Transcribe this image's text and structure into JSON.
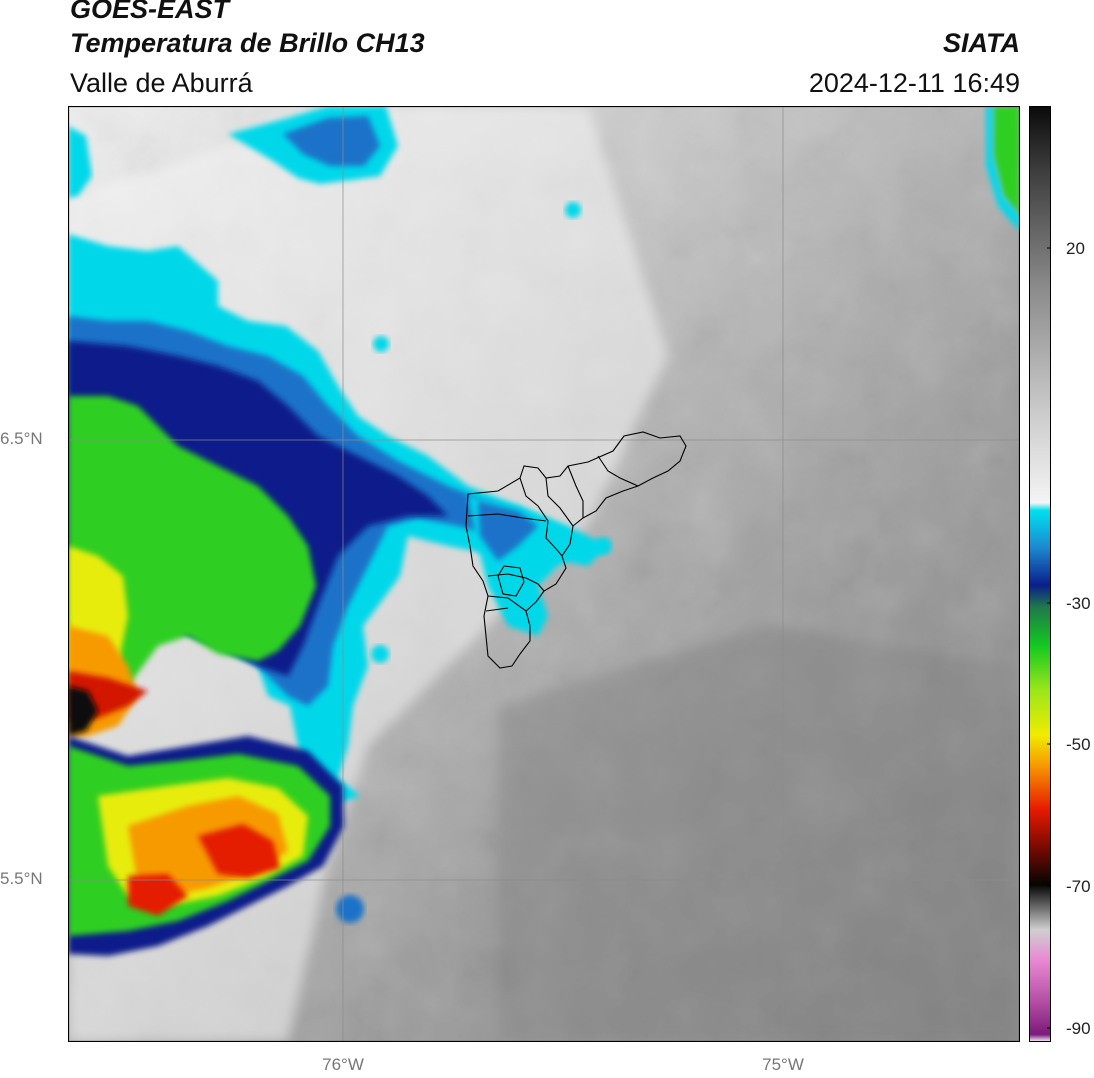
{
  "header": {
    "satellite": "GOES-EAST",
    "product": "Temperatura de Brillo CH13",
    "region": "Valle de Aburrá",
    "brand": "SIATA",
    "timestamp": "2024-12-11 16:49"
  },
  "axes": {
    "lat_labels": [
      "6.5°N",
      "5.5°N"
    ],
    "lon_labels": [
      "76°W",
      "75°W"
    ]
  },
  "colorbar": {
    "tick_labels": [
      "20",
      "-30",
      "-50",
      "-70",
      "-90"
    ],
    "stops": [
      {
        "value": 34,
        "color": "#0a0a0a"
      },
      {
        "value": 26,
        "color": "#3a3a3a"
      },
      {
        "value": 10,
        "color": "#8a8a8a"
      },
      {
        "value": -8,
        "color": "#cfcfcf"
      },
      {
        "value": -19,
        "color": "#f4f4f4"
      },
      {
        "value": -20,
        "color": "#00e0f0"
      },
      {
        "value": -25,
        "color": "#1c88d0"
      },
      {
        "value": -30,
        "color": "#0b1e8a"
      },
      {
        "value": -33,
        "color": "#1f7a4a"
      },
      {
        "value": -38,
        "color": "#12c820"
      },
      {
        "value": -44,
        "color": "#9ae61a"
      },
      {
        "value": -50,
        "color": "#f0ec00"
      },
      {
        "value": -54,
        "color": "#f79a00"
      },
      {
        "value": -60,
        "color": "#e61a00"
      },
      {
        "value": -65,
        "color": "#7a0a00"
      },
      {
        "value": -70,
        "color": "#050505"
      },
      {
        "value": -76,
        "color": "#cfcfcf"
      },
      {
        "value": -80,
        "color": "#e88ad4"
      },
      {
        "value": -86,
        "color": "#b04aa0"
      },
      {
        "value": -90,
        "color": "#7a1a7a"
      },
      {
        "value": -91,
        "color": "#ffffff"
      }
    ]
  },
  "colors": {
    "cold_cloud_cyan": "#00d8ea",
    "cold_cloud_blue": "#0b1e8a",
    "deep_convection_green": "#2fcf24",
    "overshoot_red": "#e41e00",
    "clear_gray": "#9a9a9a"
  }
}
